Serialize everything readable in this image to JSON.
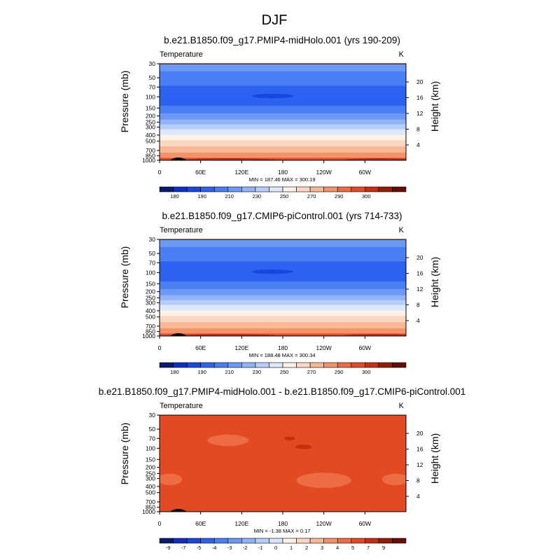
{
  "page_title": "DJF",
  "chart_data": [
    {
      "type": "heatmap",
      "title": "b.e21.B1850.f09_g17.PMIP4-midHolo.001 (yrs 190-209)",
      "variable": "Temperature",
      "units": "K",
      "ylabel": "Pressure (mb)",
      "y2label": "Height (km)",
      "x_ticks": [
        "0",
        "60E",
        "120E",
        "180",
        "120W",
        "60W"
      ],
      "x_tick_lon": [
        0,
        60,
        120,
        180,
        240,
        300
      ],
      "xlim": [
        0,
        360
      ],
      "y_ticks": [
        30,
        50,
        70,
        100,
        150,
        200,
        250,
        300,
        400,
        500,
        700,
        850,
        1000
      ],
      "ylim": [
        1000,
        30
      ],
      "y_scale": "log",
      "height_ticks_km": [
        4,
        8,
        12,
        16,
        20
      ],
      "stats": "MIN = 187.46  MAX = 300.19",
      "colorbar_labels": [
        "180",
        "190",
        "210",
        "230",
        "250",
        "270",
        "290",
        "300"
      ],
      "colors": [
        "#0a1b6e",
        "#0d2fc4",
        "#1847e0",
        "#2b62f0",
        "#4a7ff4",
        "#6c99f5",
        "#92b3f7",
        "#b8cefa",
        "#dde8fc",
        "#fdf1e8",
        "#fbd6c0",
        "#f8b795",
        "#f4926a",
        "#ee6c44",
        "#e14a23",
        "#c52f10",
        "#951d08",
        "#6a0c02"
      ],
      "profile": [
        {
          "p": 30,
          "v": 214
        },
        {
          "p": 45,
          "v": 208
        },
        {
          "p": 70,
          "v": 199
        },
        {
          "p": 100,
          "v": 194
        },
        {
          "p": 120,
          "v": 196
        },
        {
          "p": 150,
          "v": 203
        },
        {
          "p": 200,
          "v": 214
        },
        {
          "p": 250,
          "v": 225
        },
        {
          "p": 300,
          "v": 236
        },
        {
          "p": 400,
          "v": 251
        },
        {
          "p": 500,
          "v": 262
        },
        {
          "p": 700,
          "v": 277
        },
        {
          "p": 850,
          "v": 287
        },
        {
          "p": 1000,
          "v": 296
        }
      ],
      "cold_core": {
        "lon": 165,
        "p": 97,
        "value": 187.46
      },
      "topography_lon": [
        [
          15,
          40
        ]
      ]
    },
    {
      "type": "heatmap",
      "title": "b.e21.B1850.f09_g17.CMIP6-piControl.001 (yrs 714-733)",
      "variable": "Temperature",
      "units": "K",
      "ylabel": "Pressure (mb)",
      "y2label": "Height (km)",
      "x_ticks": [
        "0",
        "60E",
        "120E",
        "180",
        "120W",
        "60W"
      ],
      "x_tick_lon": [
        0,
        60,
        120,
        180,
        240,
        300
      ],
      "xlim": [
        0,
        360
      ],
      "y_ticks": [
        30,
        50,
        70,
        100,
        150,
        200,
        250,
        300,
        400,
        500,
        700,
        850,
        1000
      ],
      "ylim": [
        1000,
        30
      ],
      "y_scale": "log",
      "height_ticks_km": [
        4,
        8,
        12,
        16,
        20
      ],
      "stats": "MIN = 188.48  MAX = 300.34",
      "colorbar_labels": [
        "180",
        "190",
        "210",
        "230",
        "250",
        "270",
        "290",
        "300"
      ],
      "colors": [
        "#0a1b6e",
        "#0d2fc4",
        "#1847e0",
        "#2b62f0",
        "#4a7ff4",
        "#6c99f5",
        "#92b3f7",
        "#b8cefa",
        "#dde8fc",
        "#fdf1e8",
        "#fbd6c0",
        "#f8b795",
        "#f4926a",
        "#ee6c44",
        "#e14a23",
        "#c52f10",
        "#951d08",
        "#6a0c02"
      ],
      "profile": [
        {
          "p": 30,
          "v": 214
        },
        {
          "p": 45,
          "v": 208
        },
        {
          "p": 70,
          "v": 199
        },
        {
          "p": 100,
          "v": 194
        },
        {
          "p": 120,
          "v": 196
        },
        {
          "p": 150,
          "v": 203
        },
        {
          "p": 200,
          "v": 214
        },
        {
          "p": 250,
          "v": 225
        },
        {
          "p": 300,
          "v": 236
        },
        {
          "p": 400,
          "v": 251
        },
        {
          "p": 500,
          "v": 262
        },
        {
          "p": 700,
          "v": 277
        },
        {
          "p": 850,
          "v": 287
        },
        {
          "p": 1000,
          "v": 296
        }
      ],
      "cold_core": {
        "lon": 165,
        "p": 97,
        "value": 188.48
      },
      "topography_lon": [
        [
          15,
          40
        ]
      ]
    },
    {
      "type": "heatmap",
      "title": "b.e21.B1850.f09_g17.PMIP4-midHolo.001 - b.e21.B1850.f09_g17.CMIP6-piControl.001",
      "variable": "Temperature",
      "units": "K",
      "ylabel": "Pressure (mb)",
      "y2label": "Height (km)",
      "x_ticks": [
        "0",
        "60E",
        "120E",
        "180",
        "120W",
        "60W"
      ],
      "x_tick_lon": [
        0,
        60,
        120,
        180,
        240,
        300
      ],
      "xlim": [
        0,
        360
      ],
      "y_ticks": [
        30,
        50,
        70,
        100,
        150,
        200,
        250,
        300,
        400,
        500,
        700,
        850,
        1000
      ],
      "ylim": [
        1000,
        30
      ],
      "y_scale": "log",
      "height_ticks_km": [
        4,
        8,
        12,
        16,
        20
      ],
      "stats": "MIN =  -1.38  MAX =   0.17",
      "colorbar_labels": [
        "-9",
        "-7",
        "-5",
        "-4",
        "-3",
        "-2",
        "-1",
        "0",
        "1",
        "2",
        "3",
        "4",
        "5",
        "7",
        "9"
      ],
      "colors": [
        "#0a1b6e",
        "#0d2fc4",
        "#1847e0",
        "#2b62f0",
        "#4a7ff4",
        "#6c99f5",
        "#92b3f7",
        "#b8cefa",
        "#d6e4fb",
        "#fdf1e8",
        "#fbd6c0",
        "#f8b795",
        "#f4926a",
        "#ee6c44",
        "#e14a23",
        "#c52f10",
        "#951d08",
        "#6a0c02"
      ],
      "background_value": -0.2,
      "anomalies": [
        {
          "lon": 100,
          "p": 75,
          "dlon": 30,
          "dlogp": 0.09,
          "value": -0.6
        },
        {
          "lon": 240,
          "p": 320,
          "dlon": 40,
          "dlogp": 0.12,
          "value": -0.6
        },
        {
          "lon": 15,
          "p": 310,
          "dlon": 18,
          "dlogp": 0.09,
          "value": -0.6
        },
        {
          "lon": 345,
          "p": 310,
          "dlon": 20,
          "dlogp": 0.09,
          "value": -0.6
        },
        {
          "lon": 190,
          "p": 70,
          "dlon": 8,
          "dlogp": 0.03,
          "value": 0.1
        },
        {
          "lon": 210,
          "p": 95,
          "dlon": 12,
          "dlogp": 0.035,
          "value": 0.15
        }
      ],
      "topography_lon": [
        [
          15,
          40
        ]
      ]
    }
  ]
}
